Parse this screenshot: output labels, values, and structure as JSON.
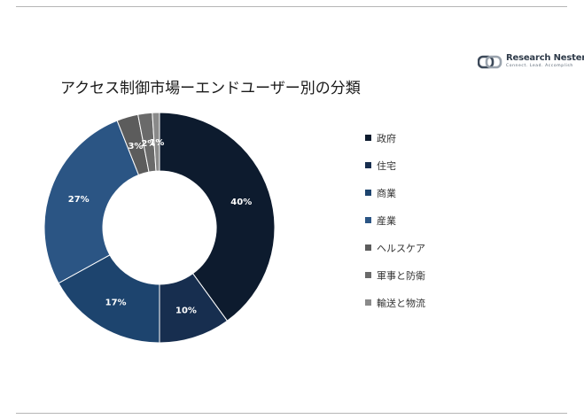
{
  "brand": {
    "name": "Research Nester",
    "tagline": "Connect. Lead. Accomplish"
  },
  "chart_data": {
    "type": "pie",
    "donut": true,
    "title": "アクセス制御市場ーエンドユーザー別の分類",
    "categories": [
      "政府",
      "住宅",
      "商業",
      "産業",
      "ヘルスケア",
      "軍事と防衛",
      "輸送と物流"
    ],
    "values": [
      40,
      10,
      17,
      27,
      3,
      2,
      1
    ],
    "labels": [
      "40%",
      "10%",
      "17%",
      "27%",
      "3%",
      "2%",
      "1%"
    ],
    "colors": [
      "#0d1b2e",
      "#172e4f",
      "#1d446e",
      "#2b5584",
      "#5c5c5c",
      "#6a6a6a",
      "#8a8a8a"
    ],
    "legend_position": "right"
  }
}
